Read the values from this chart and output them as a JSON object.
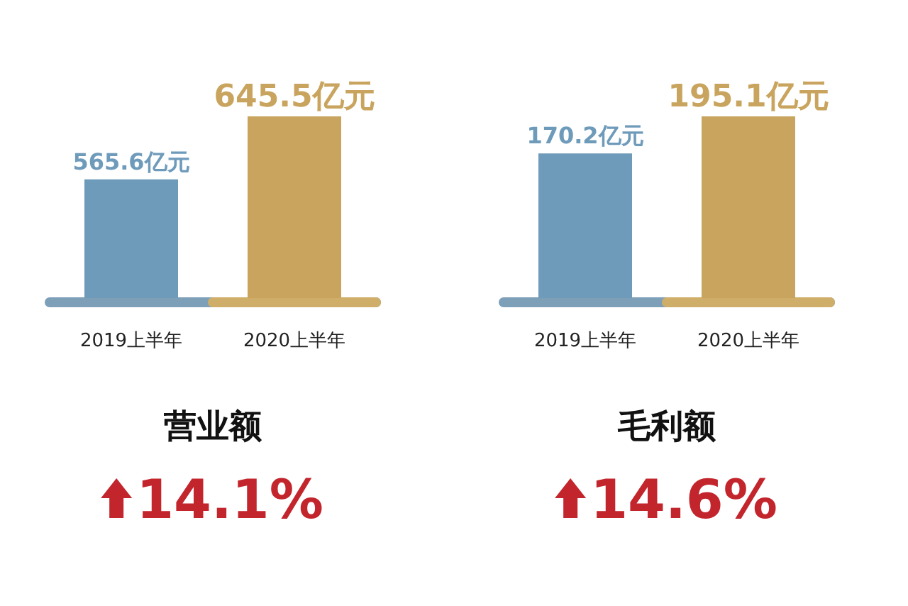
{
  "chart_data": [
    {
      "type": "bar",
      "title": "营业额",
      "categories": [
        "2019上半年",
        "2020上半年"
      ],
      "values": [
        565.6,
        645.5
      ],
      "colors": [
        "#6f9bbb",
        "#c9a45e"
      ],
      "value_labels": [
        "565.6亿元",
        "645.5亿元"
      ],
      "ylim": [
        415,
        645.5
      ],
      "annotations": [
        "14.1%"
      ]
    },
    {
      "type": "bar",
      "title": "毛利额",
      "categories": [
        "2019上半年",
        "2020上半年"
      ],
      "values": [
        170.2,
        195.1
      ],
      "colors": [
        "#6f9bbb",
        "#c9a45e"
      ],
      "value_labels": [
        "170.2亿元",
        "195.1亿元"
      ],
      "ylim": [
        73,
        195.1
      ],
      "annotations": [
        "14.6%"
      ]
    }
  ]
}
